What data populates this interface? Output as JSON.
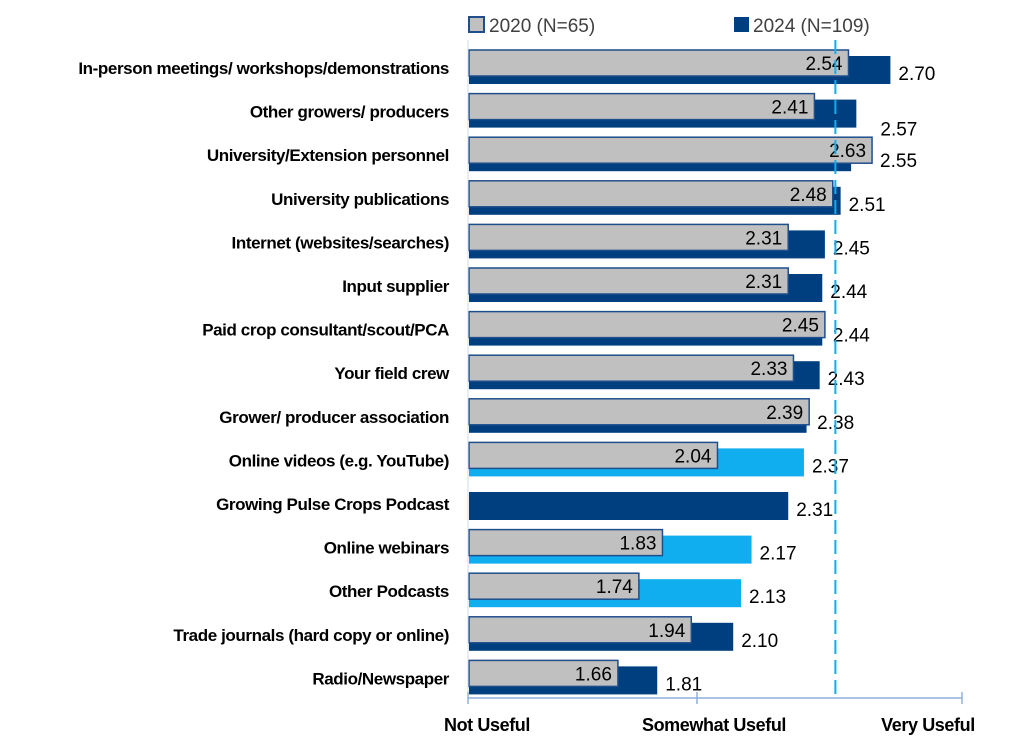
{
  "chart_data": {
    "type": "bar",
    "orientation": "horizontal",
    "categories": [
      "In-person meetings/ workshops/demonstrations",
      "Other growers/ producers",
      "University/Extension personnel",
      "University publications",
      "Internet (websites/searches)",
      "Input supplier",
      "Paid crop consultant/scout/PCA",
      "Your field crew",
      "Grower/ producer association",
      "Online videos (e.g. YouTube)",
      "Growing Pulse Crops Podcast",
      "Online webinars",
      "Other Podcasts",
      "Trade journals (hard copy or online)",
      "Radio/Newspaper"
    ],
    "series": [
      {
        "name": "2020 (N=65)",
        "color": "#c0c0c0",
        "border": "#1f4e8c",
        "values": [
          2.54,
          2.41,
          2.63,
          2.48,
          2.31,
          2.31,
          2.45,
          2.33,
          2.39,
          2.04,
          null,
          1.83,
          1.74,
          1.94,
          1.66
        ],
        "labels": [
          "2.54",
          "2.41",
          "2.63",
          "2.48",
          "2.31",
          "2.31",
          "2.45",
          "2.33",
          "2.39",
          "2.04",
          "",
          "1.83",
          "1.74",
          "1.94",
          "1.66"
        ],
        "label_highlight": [
          false,
          false,
          true,
          false,
          false,
          false,
          true,
          false,
          true,
          false,
          false,
          false,
          false,
          false,
          false
        ]
      },
      {
        "name": "2024 (N=109)",
        "color": "#003f7f",
        "values": [
          2.7,
          2.57,
          2.55,
          2.51,
          2.45,
          2.44,
          2.44,
          2.43,
          2.38,
          2.37,
          2.31,
          2.17,
          2.13,
          2.1,
          1.81
        ],
        "labels": [
          "2.70",
          "2.57",
          "2.55",
          "2.51",
          "2.45",
          "2.44",
          "2.44",
          "2.43",
          "2.38",
          "2.37",
          "2.31",
          "2.17",
          "2.13",
          "2.10",
          "1.81"
        ],
        "bar_highlight": [
          false,
          false,
          false,
          false,
          false,
          false,
          false,
          false,
          false,
          true,
          false,
          true,
          true,
          false,
          false
        ]
      }
    ],
    "highlight_color": "#10aeef",
    "xlim": [
      1,
      3
    ],
    "xticks": [
      1,
      2,
      3
    ],
    "xtick_labels": [
      "Not Useful",
      "Somewhat Useful",
      "Very Useful"
    ],
    "reference_line": 2.49,
    "reference_line_color": "#10aeef",
    "grid": false,
    "legend_position": "top"
  }
}
